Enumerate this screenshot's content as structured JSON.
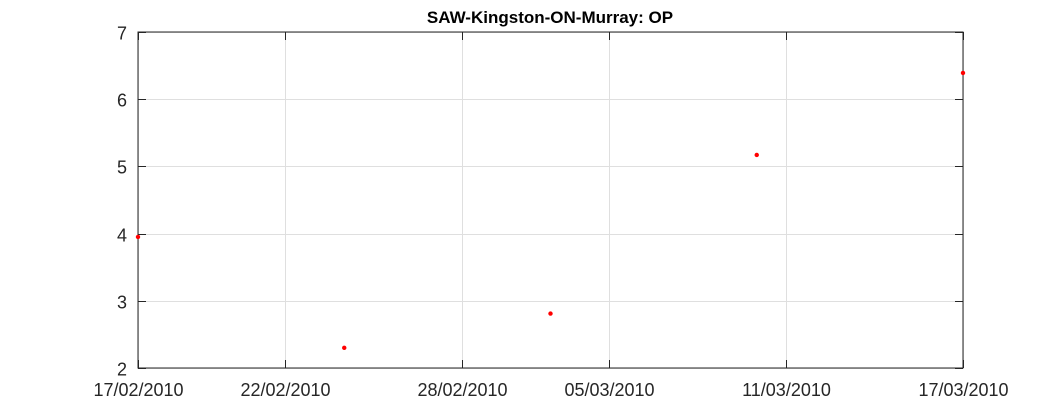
{
  "chart_data": {
    "type": "scatter",
    "title": "SAW-Kingston-ON-Murray: OP",
    "xlabel": "",
    "ylabel": "",
    "x_type": "date",
    "xlim": [
      "2010-02-17",
      "2010-03-17"
    ],
    "ylim": [
      2,
      7
    ],
    "x_ticks": [
      "2010-02-17",
      "2010-02-22",
      "2010-02-28",
      "2010-03-05",
      "2010-03-11",
      "2010-03-17"
    ],
    "x_tick_labels": [
      "17/02/2010",
      "22/02/2010",
      "28/02/2010",
      "05/03/2010",
      "11/03/2010",
      "17/03/2010"
    ],
    "y_ticks": [
      2,
      3,
      4,
      5,
      6,
      7
    ],
    "y_tick_labels": [
      "2",
      "3",
      "4",
      "5",
      "6",
      "7"
    ],
    "grid": true,
    "marker_color": "#ff0000",
    "points": [
      {
        "x": "2010-02-17",
        "y": 3.95
      },
      {
        "x": "2010-02-24",
        "y": 2.3
      },
      {
        "x": "2010-03-03",
        "y": 2.81
      },
      {
        "x": "2010-03-10",
        "y": 5.17
      },
      {
        "x": "2010-03-17",
        "y": 6.39
      }
    ]
  }
}
